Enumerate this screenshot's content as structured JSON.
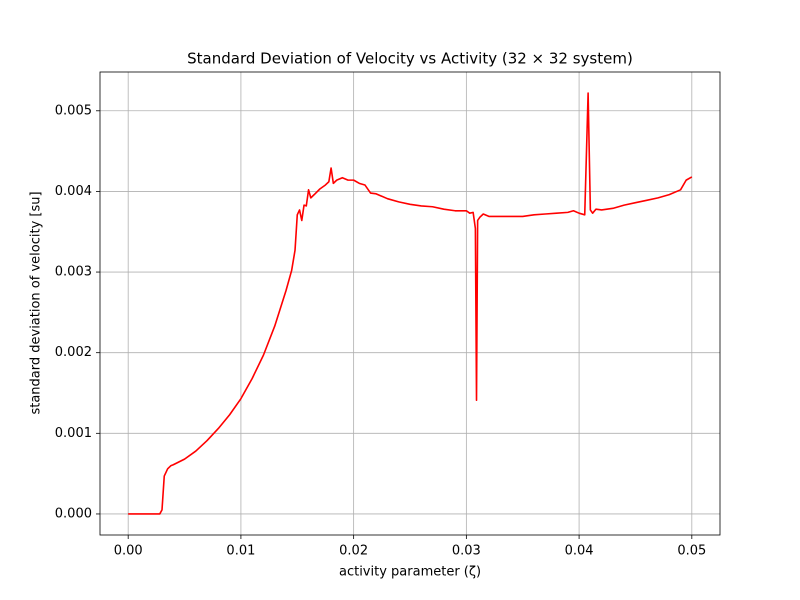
{
  "chart_data": {
    "type": "line",
    "title": "Standard Deviation of Velocity vs Activity (32 × 32 system)",
    "x_label": "activity parameter (ζ)",
    "y_label": "standard deviation of velocity [su]",
    "color": "#ff0000",
    "grid": true,
    "xlim": [
      -0.0025,
      0.0525
    ],
    "ylim": [
      -0.000261,
      0.005481
    ],
    "xticks": [
      {
        "value": 0,
        "label": "0.00"
      },
      {
        "value": 0.01,
        "label": "0.01"
      },
      {
        "value": 0.02,
        "label": "0.02"
      },
      {
        "value": 0.03,
        "label": "0.03"
      },
      {
        "value": 0.04,
        "label": "0.04"
      },
      {
        "value": 0.05,
        "label": "0.05"
      }
    ],
    "yticks": [
      {
        "value": 0,
        "label": "0.000"
      },
      {
        "value": 0.001,
        "label": "0.001"
      },
      {
        "value": 0.002,
        "label": "0.002"
      },
      {
        "value": 0.003,
        "label": "0.003"
      },
      {
        "value": 0.004,
        "label": "0.004"
      },
      {
        "value": 0.005,
        "label": "0.005"
      }
    ],
    "x": [
      0,
      0.001,
      0.002,
      0.0028,
      0.003,
      0.0032,
      0.0035,
      0.0038,
      0.004,
      0.005,
      0.006,
      0.007,
      0.008,
      0.009,
      0.01,
      0.011,
      0.012,
      0.013,
      0.014,
      0.0145,
      0.0148,
      0.015,
      0.0152,
      0.0154,
      0.0156,
      0.0158,
      0.016,
      0.0162,
      0.0165,
      0.017,
      0.0175,
      0.0178,
      0.018,
      0.0182,
      0.0185,
      0.019,
      0.0195,
      0.02,
      0.0205,
      0.021,
      0.0215,
      0.022,
      0.023,
      0.024,
      0.025,
      0.026,
      0.027,
      0.028,
      0.029,
      0.03,
      0.0303,
      0.0306,
      0.0308,
      0.0309,
      0.031,
      0.0312,
      0.0315,
      0.032,
      0.033,
      0.034,
      0.035,
      0.036,
      0.037,
      0.038,
      0.039,
      0.0395,
      0.04,
      0.0405,
      0.0408,
      0.041,
      0.0412,
      0.0415,
      0.042,
      0.043,
      0.044,
      0.045,
      0.046,
      0.047,
      0.048,
      0.049,
      0.0495,
      0.05
    ],
    "values": [
      0,
      0,
      0,
      0,
      5e-05,
      0.00047,
      0.00056,
      0.0006,
      0.00061,
      0.00068,
      0.00078,
      0.00091,
      0.00106,
      0.00123,
      0.00143,
      0.00168,
      0.00197,
      0.00233,
      0.00277,
      0.00302,
      0.00327,
      0.00371,
      0.00377,
      0.00364,
      0.00383,
      0.00382,
      0.00402,
      0.00392,
      0.00396,
      0.00403,
      0.00408,
      0.00412,
      0.00429,
      0.0041,
      0.00414,
      0.00417,
      0.00414,
      0.00414,
      0.0041,
      0.00408,
      0.00398,
      0.00397,
      0.00391,
      0.00387,
      0.00384,
      0.00382,
      0.00381,
      0.00378,
      0.00376,
      0.00376,
      0.00373,
      0.00374,
      0.00354,
      0.00141,
      0.00364,
      0.00368,
      0.00372,
      0.00369,
      0.00369,
      0.00369,
      0.00369,
      0.00371,
      0.00372,
      0.00373,
      0.00374,
      0.00376,
      0.00373,
      0.00371,
      0.00522,
      0.00377,
      0.00373,
      0.00378,
      0.00377,
      0.00379,
      0.00383,
      0.00386,
      0.00389,
      0.00392,
      0.00396,
      0.00402,
      0.00414,
      0.00418
    ]
  }
}
